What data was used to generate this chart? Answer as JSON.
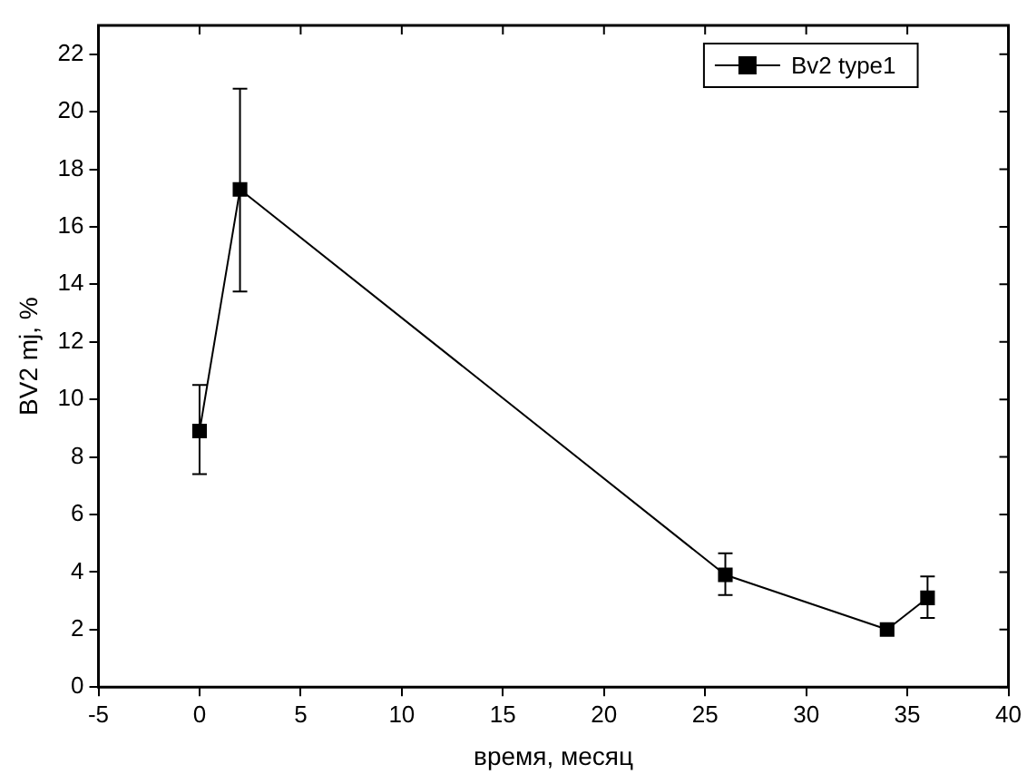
{
  "chart_data": {
    "type": "line",
    "xlabel": "время, месяц",
    "ylabel": "BV2 mj, %",
    "x": [
      0,
      2,
      26,
      34,
      36
    ],
    "series": [
      {
        "name": "Bv2 type1",
        "color": "#000000",
        "values": [
          8.9,
          17.3,
          3.9,
          2.0,
          3.1
        ],
        "errors": [
          [
            7.4,
            10.5
          ],
          [
            13.75,
            20.8
          ],
          [
            3.2,
            4.65
          ],
          null,
          [
            2.4,
            3.85
          ]
        ]
      }
    ],
    "xlim": [
      -5,
      40
    ],
    "xticks": [
      -5,
      0,
      5,
      10,
      15,
      20,
      25,
      30,
      35,
      40
    ],
    "ylim": [
      0,
      23
    ],
    "yticks": [
      0,
      2,
      4,
      6,
      8,
      10,
      12,
      14,
      16,
      18,
      20,
      22
    ],
    "grid": false,
    "legend": "top right",
    "marker": "square",
    "line_style": "solid"
  }
}
